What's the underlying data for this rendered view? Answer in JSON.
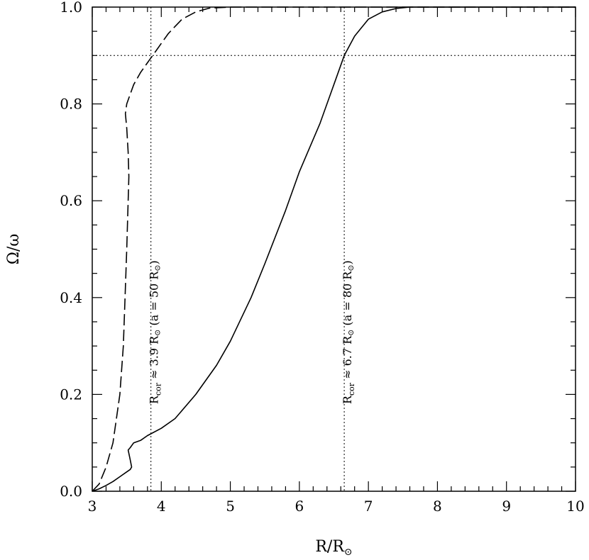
{
  "chart_data": {
    "type": "line",
    "xlabel": "R/R",
    "xlabel_sub": "⊙",
    "ylabel": "Ω/ω",
    "xlim": [
      3,
      10
    ],
    "ylim": [
      0,
      1
    ],
    "x_ticks": [
      3,
      4,
      5,
      6,
      7,
      8,
      9,
      10
    ],
    "x_tick_labels": [
      "3",
      "4",
      "5",
      "6",
      "7",
      "8",
      "9",
      "10"
    ],
    "y_ticks": [
      0,
      0.2,
      0.4,
      0.6,
      0.8,
      1.0
    ],
    "y_tick_labels": [
      "0.0",
      "0.2",
      "0.4",
      "0.6",
      "0.8",
      "1.0"
    ],
    "grid": false,
    "series": [
      {
        "style": "dashed",
        "x": [
          3.0,
          3.1,
          3.2,
          3.3,
          3.4,
          3.45,
          3.48,
          3.5,
          3.52,
          3.53,
          3.52,
          3.5,
          3.48,
          3.5,
          3.55,
          3.6,
          3.7,
          3.8,
          3.85,
          3.9,
          4.0,
          4.1,
          4.2,
          4.3,
          4.5,
          4.7,
          5.0,
          6.0,
          7.0,
          8.0,
          9.0,
          10.0
        ],
        "y": [
          0.0,
          0.015,
          0.05,
          0.1,
          0.2,
          0.3,
          0.42,
          0.5,
          0.6,
          0.65,
          0.7,
          0.75,
          0.78,
          0.8,
          0.82,
          0.84,
          0.865,
          0.885,
          0.895,
          0.905,
          0.925,
          0.945,
          0.96,
          0.975,
          0.99,
          0.998,
          1.0,
          1.0,
          1.0,
          1.0,
          1.0,
          1.0
        ]
      },
      {
        "style": "solid",
        "x": [
          3.0,
          3.1,
          3.2,
          3.3,
          3.4,
          3.5,
          3.55,
          3.57,
          3.55,
          3.52,
          3.55,
          3.6,
          3.7,
          3.8,
          4.0,
          4.2,
          4.5,
          4.8,
          5.0,
          5.3,
          5.5,
          5.8,
          6.0,
          6.3,
          6.5,
          6.65,
          6.8,
          7.0,
          7.2,
          7.4,
          7.6,
          8.0,
          9.0,
          10.0
        ],
        "y": [
          0.0,
          0.005,
          0.012,
          0.02,
          0.03,
          0.04,
          0.045,
          0.05,
          0.065,
          0.085,
          0.09,
          0.1,
          0.105,
          0.115,
          0.13,
          0.15,
          0.2,
          0.26,
          0.31,
          0.4,
          0.47,
          0.58,
          0.66,
          0.76,
          0.84,
          0.9,
          0.94,
          0.975,
          0.99,
          0.997,
          1.0,
          1.0,
          1.0,
          1.0
        ]
      }
    ],
    "ref_lines": [
      {
        "orientation": "vertical",
        "value": 3.85,
        "style": "dotted"
      },
      {
        "orientation": "vertical",
        "value": 6.65,
        "style": "dotted"
      },
      {
        "orientation": "horizontal",
        "value": 0.9,
        "style": "dotted"
      }
    ],
    "annotations": [
      {
        "text_main": "R",
        "text_sub": "cor",
        "text_rest": " ≈ 3.9 R",
        "text_sun": "⊙",
        "text_tail": " (a = 50 R",
        "text_sun2": "⊙",
        "text_end": ")",
        "x": 3.95,
        "y": 0.18,
        "rotation": -90
      },
      {
        "text_main": "R",
        "text_sub": "cor",
        "text_rest": " ≈ 6.7 R",
        "text_sun": "⊙",
        "text_tail": " (a = 80 R",
        "text_sun2": "⊙",
        "text_end": ")",
        "x": 6.75,
        "y": 0.18,
        "rotation": -90
      }
    ]
  }
}
